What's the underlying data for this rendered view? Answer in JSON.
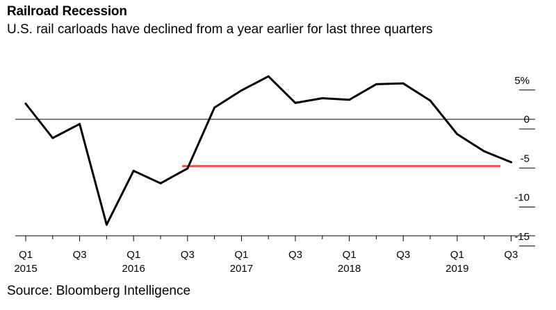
{
  "title": "Railroad Recession",
  "subtitle": "U.S. rail carloads have declined from a year earlier for last three quarters",
  "source": "Source: Bloomberg Intelligence",
  "chart_data": {
    "type": "line",
    "title": "Railroad Recession",
    "subtitle": "U.S. rail carloads have declined from a year earlier for last three quarters",
    "ylim": [
      -15,
      5
    ],
    "y_ticks": [
      5,
      0,
      -5,
      -10,
      -15
    ],
    "y_tick_labels": [
      "5%",
      "0",
      "-5",
      "-10",
      "-15"
    ],
    "x_tick_labels": [
      {
        "label": "Q1",
        "year": "2015"
      },
      {
        "label": "Q3",
        "year": ""
      },
      {
        "label": "Q1",
        "year": "2016"
      },
      {
        "label": "Q3",
        "year": ""
      },
      {
        "label": "Q1",
        "year": "2017"
      },
      {
        "label": "Q3",
        "year": ""
      },
      {
        "label": "Q1",
        "year": "2018"
      },
      {
        "label": "Q3",
        "year": ""
      },
      {
        "label": "Q1",
        "year": "2019"
      },
      {
        "label": "Q3",
        "year": ""
      }
    ],
    "series": [
      {
        "color": "#000000",
        "x": [
          2015.0,
          2015.25,
          2015.5,
          2015.75,
          2016.0,
          2016.25,
          2016.5,
          2016.75,
          2017.0,
          2017.25,
          2017.5,
          2017.75,
          2018.0,
          2018.25,
          2018.5,
          2018.75,
          2019.0,
          2019.25,
          2019.5
        ],
        "values": [
          2.0,
          -2.4,
          -0.6,
          -13.5,
          -6.6,
          -8.2,
          -6.3,
          1.5,
          3.7,
          5.5,
          2.1,
          2.7,
          2.5,
          4.5,
          4.6,
          2.4,
          -1.9,
          -4.1,
          -5.5
        ]
      }
    ],
    "reference_line": {
      "color": "#f15b4c",
      "y": -6.0,
      "x_start": 2016.45,
      "x_end": 2019.4
    },
    "zero_line": true,
    "grid": false
  },
  "colors": {
    "line": "#000000",
    "reference": "#f15b4c",
    "axis": "#000000"
  }
}
